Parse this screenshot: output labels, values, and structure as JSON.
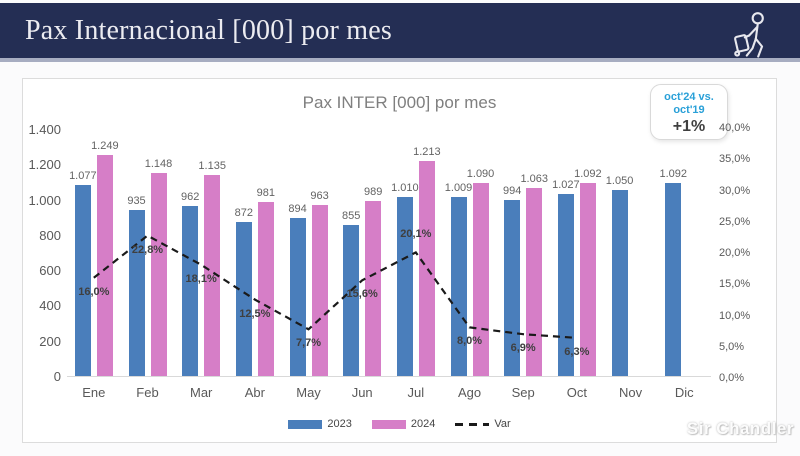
{
  "header": {
    "title": "Pax Internacional [000] por mes",
    "icon": "traveler-icon"
  },
  "badge": {
    "line1": "oct'24 vs.",
    "line2": "oct'19",
    "value": "+1%"
  },
  "watermark": "Sir Chandler",
  "colors": {
    "header_navy": "#242E54",
    "header_strip": "#A7ADC1",
    "bar_2023_blue": "#4A7EBB",
    "bar_2024_pink": "#D67EC7",
    "badge_blue": "#29A0D8",
    "var_line": "#1A1A1A"
  },
  "chart_data": {
    "type": "bar",
    "title": "Pax INTER [000] por mes",
    "categories": [
      "Ene",
      "Feb",
      "Mar",
      "Abr",
      "May",
      "Jun",
      "Jul",
      "Ago",
      "Sep",
      "Oct",
      "Nov",
      "Dic"
    ],
    "series": [
      {
        "name": "2023",
        "type": "bar",
        "color": "#4A7EBB",
        "values": [
          1077,
          935,
          962,
          872,
          894,
          855,
          1010,
          1009,
          994,
          1027,
          1050,
          1092
        ],
        "labels": [
          "1.077",
          "935",
          "962",
          "872",
          "894",
          "855",
          "1.010",
          "1.009",
          "994",
          "1.027",
          "1.050",
          "1.092"
        ]
      },
      {
        "name": "2024",
        "type": "bar",
        "color": "#D67EC7",
        "values": [
          1249,
          1148,
          1135,
          981,
          963,
          989,
          1213,
          1090,
          1063,
          1092,
          null,
          null
        ],
        "labels": [
          "1.249",
          "1.148",
          "1.135",
          "981",
          "963",
          "989",
          "1.213",
          "1.090",
          "1.063",
          "1.092",
          null,
          null
        ]
      },
      {
        "name": "Var",
        "type": "line",
        "color": "#1A1A1A",
        "dashed": true,
        "values": [
          16.0,
          22.8,
          18.1,
          12.5,
          7.7,
          15.6,
          20.1,
          8.0,
          6.9,
          6.3,
          null,
          null
        ],
        "labels": [
          "16,0%",
          "22,8%",
          "18,1%",
          "12,5%",
          "7,7%",
          "15,6%",
          "20,1%",
          "8,0%",
          "6,9%",
          "6,3%",
          null,
          null
        ]
      }
    ],
    "left_axis": {
      "max": 1400,
      "ticks": [
        "1.400",
        "1.200",
        "1.000",
        "800",
        "600",
        "400",
        "200",
        "0"
      ]
    },
    "right_axis": {
      "max": 40,
      "ticks": [
        "40,0%",
        "35,0%",
        "30,0%",
        "25,0%",
        "20,0%",
        "15,0%",
        "10,0%",
        "5,0%",
        "0,0%"
      ]
    },
    "legend": [
      "2023",
      "2024",
      "Var"
    ],
    "legend_position": "bottom",
    "grid": false
  }
}
